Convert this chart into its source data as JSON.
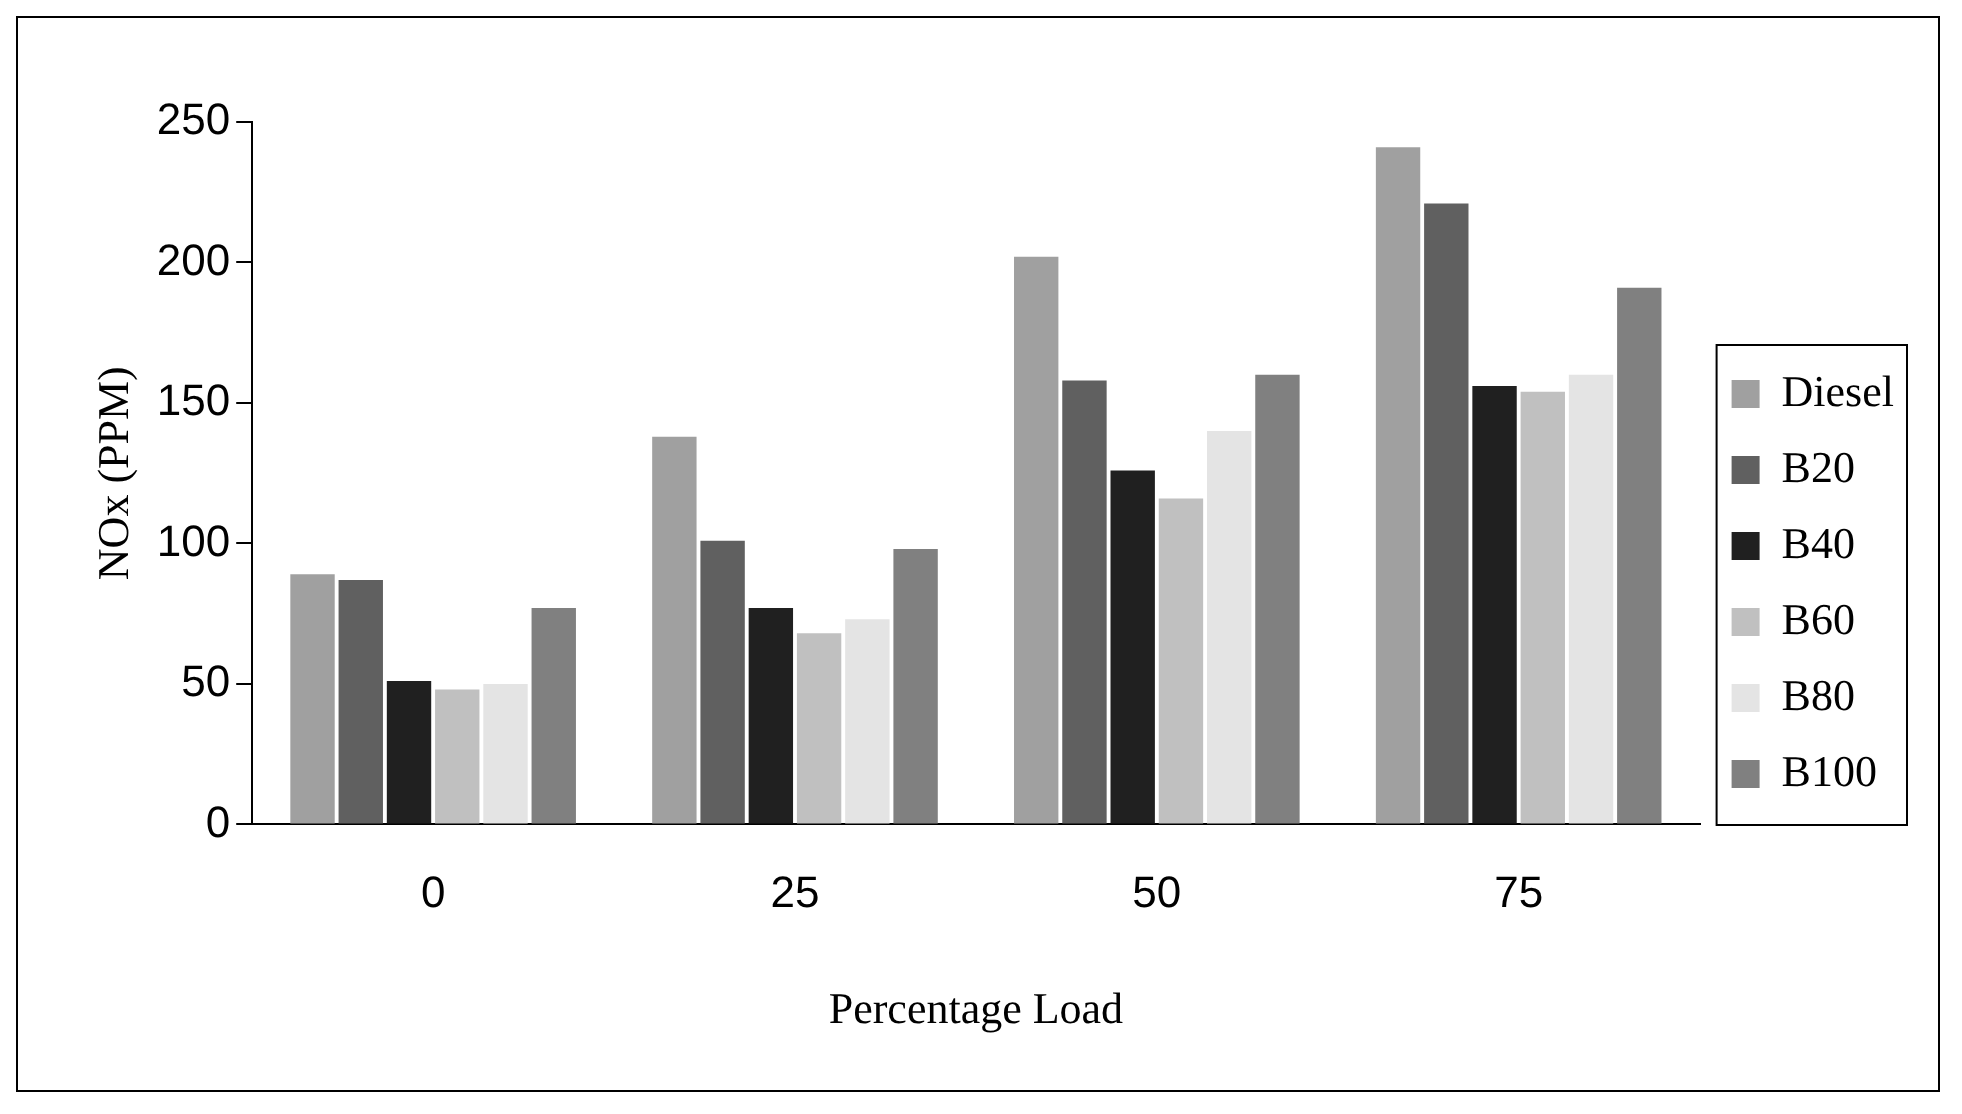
{
  "chart_data": {
    "type": "bar",
    "xlabel": "Percentage Load",
    "ylabel": "NOx (PPM)",
    "categories": [
      "0",
      "25",
      "50",
      "75"
    ],
    "series": [
      {
        "name": "Diesel",
        "color": "#a0a0a0",
        "values": [
          89,
          138,
          202,
          241
        ]
      },
      {
        "name": "B20",
        "color": "#606060",
        "values": [
          87,
          101,
          158,
          221
        ]
      },
      {
        "name": "B40",
        "color": "#202020",
        "values": [
          51,
          77,
          126,
          156
        ]
      },
      {
        "name": "B60",
        "color": "#c0c0c0",
        "values": [
          48,
          68,
          116,
          154
        ]
      },
      {
        "name": "B80",
        "color": "#e4e4e4",
        "values": [
          50,
          73,
          140,
          160
        ]
      },
      {
        "name": "B100",
        "color": "#808080",
        "values": [
          77,
          98,
          160,
          191
        ]
      }
    ],
    "ylim": [
      0,
      250
    ],
    "yticks": [
      0,
      50,
      100,
      150,
      200,
      250
    ],
    "grid": false,
    "legend": "right"
  }
}
